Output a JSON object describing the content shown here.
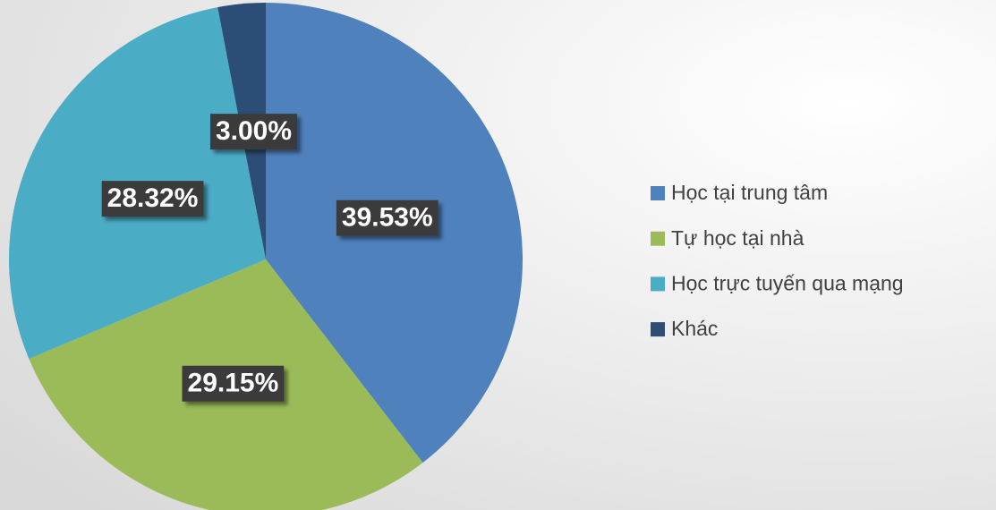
{
  "chart_data": {
    "type": "pie",
    "categories": [
      "Học tại trung tâm",
      "Tự học tại nhà",
      "Học trực tuyến qua mạng",
      "Khác"
    ],
    "values": [
      39.53,
      29.15,
      28.32,
      3.0
    ],
    "value_labels": [
      "39.53%",
      "29.15%",
      "28.32%",
      "3.00%"
    ],
    "colors": [
      "#4f81bd",
      "#9bbb59",
      "#4bacc6",
      "#2c4d75"
    ],
    "legend": "right"
  }
}
